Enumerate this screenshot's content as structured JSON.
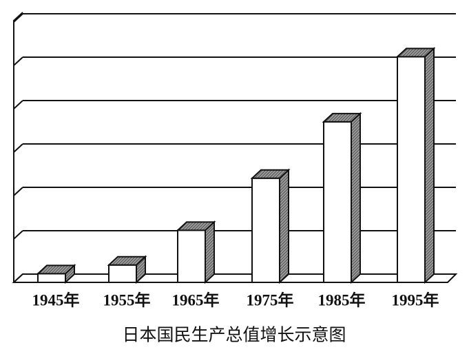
{
  "chart_data": {
    "type": "bar3d",
    "title": "日本国民生产总值增长示意图",
    "categories": [
      "1945年",
      "1955年",
      "1965年",
      "1975年",
      "1985年",
      "1995年"
    ],
    "values": [
      0.2,
      0.4,
      1.2,
      2.4,
      3.7,
      5.2
    ],
    "color": "#ffffff",
    "ylim": [
      0,
      6
    ],
    "yticks": [
      0,
      1,
      2,
      3,
      4,
      5,
      6
    ],
    "grid": true
  }
}
